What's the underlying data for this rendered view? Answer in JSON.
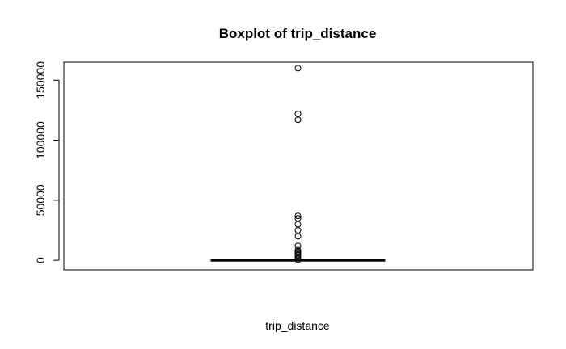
{
  "chart_data": {
    "type": "box",
    "title": "Boxplot of trip_distance",
    "xlabel": "trip_distance",
    "ylabel": "",
    "ylim": [
      -8000,
      165000
    ],
    "yticks": [
      0,
      50000,
      100000,
      150000
    ],
    "ytick_labels": [
      "0",
      "50000",
      "100000",
      "150000"
    ],
    "grid": false,
    "legend": "none",
    "box": {
      "min": 0,
      "q1": 1,
      "median": 2,
      "q3": 4,
      "max": 10
    },
    "outliers": [
      160000,
      122000,
      117000,
      37000,
      35000,
      30000,
      25000,
      20000,
      12000,
      8500,
      7000,
      6000,
      5000,
      4000,
      2000,
      500
    ],
    "colors": {
      "line": "#000000",
      "background": "#ffffff"
    }
  }
}
